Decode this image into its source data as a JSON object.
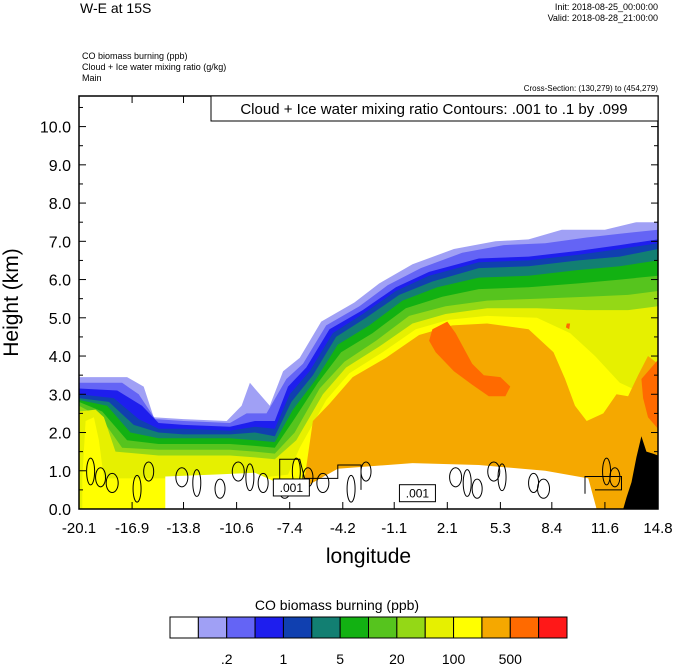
{
  "header": {
    "title": "W-E at 15S",
    "init": "Init: 2018-08-25_00:00:00",
    "valid": "Valid: 2018-08-28_21:00:00",
    "field1": "CO biomass burning   (ppb)",
    "field2": "Cloud + Ice water mixing ratio   (g/kg)",
    "field3": "Main",
    "cross_section": "Cross-Section: (130,279) to (454,279)"
  },
  "chart_data": {
    "type": "heatmap",
    "title": "W-E at 15S",
    "xlabel": "longitude",
    "ylabel": "Height (km)",
    "xlim": [
      -20.1,
      14.8
    ],
    "ylim": [
      0,
      10.8
    ],
    "x_ticks": [
      "-20.1",
      "-16.9",
      "-13.8",
      "-10.6",
      "-7.4",
      "-4.2",
      "-1.1",
      "2.1",
      "5.3",
      "8.4",
      "11.6",
      "14.8"
    ],
    "y_ticks": [
      "0.0",
      "1.0",
      "2.0",
      "3.0",
      "4.0",
      "5.0",
      "6.0",
      "7.0",
      "8.0",
      "9.0",
      "10.0"
    ],
    "contour_label": "Cloud + Ice water mixing ratio Contours: .001 to .1 by .099",
    "contour_value_labels": [
      ".001",
      ".001"
    ],
    "colorbar": {
      "title": "CO biomass burning  (ppb)",
      "colors": [
        "#ffffff",
        "#a0a0f5",
        "#6464f5",
        "#1e1eee",
        "#1040b0",
        "#127f72",
        "#12b112",
        "#56c41e",
        "#94d816",
        "#e6f000",
        "#ffff00",
        "#f5a800",
        "#ff6a00",
        "#ff1818"
      ],
      "labels": [
        ".2",
        "1",
        "5",
        "20",
        "100",
        "500"
      ]
    },
    "terrain_color": "#000000",
    "layers": [
      {
        "level": 1,
        "color": "#a0a0f5",
        "top": [
          [
            -20.1,
            3.45
          ],
          [
            -17.2,
            3.45
          ],
          [
            -16.2,
            3.2
          ],
          [
            -15.6,
            2.4
          ],
          [
            -13.8,
            2.35
          ],
          [
            -11.2,
            2.3
          ],
          [
            -10.3,
            2.7
          ],
          [
            -9.8,
            3.3
          ],
          [
            -9.2,
            3.0
          ],
          [
            -8.6,
            2.7
          ],
          [
            -7.8,
            3.6
          ],
          [
            -6.8,
            3.95
          ],
          [
            -5.5,
            4.9
          ],
          [
            -3.5,
            5.4
          ],
          [
            -2.0,
            5.9
          ],
          [
            0.0,
            6.4
          ],
          [
            2.5,
            6.8
          ],
          [
            5.0,
            7.0
          ],
          [
            7.0,
            7.05
          ],
          [
            9.0,
            7.3
          ],
          [
            11.6,
            7.3
          ],
          [
            13.5,
            7.5
          ],
          [
            14.8,
            7.5
          ]
        ]
      },
      {
        "level": 2,
        "color": "#6464f5",
        "top": [
          [
            -20.1,
            3.3
          ],
          [
            -17.5,
            3.3
          ],
          [
            -16.5,
            3.0
          ],
          [
            -15.5,
            2.35
          ],
          [
            -13.8,
            2.3
          ],
          [
            -11.0,
            2.25
          ],
          [
            -10.0,
            2.5
          ],
          [
            -8.8,
            2.5
          ],
          [
            -7.6,
            3.4
          ],
          [
            -6.6,
            3.8
          ],
          [
            -5.2,
            4.8
          ],
          [
            -3.2,
            5.3
          ],
          [
            -1.5,
            5.85
          ],
          [
            0.5,
            6.3
          ],
          [
            3.0,
            6.7
          ],
          [
            5.5,
            6.9
          ],
          [
            8.0,
            6.95
          ],
          [
            10.5,
            7.1
          ],
          [
            12.5,
            7.2
          ],
          [
            14.8,
            7.3
          ]
        ]
      },
      {
        "level": 3,
        "color": "#1e1eee",
        "top": [
          [
            -20.1,
            3.15
          ],
          [
            -17.8,
            3.1
          ],
          [
            -16.3,
            2.7
          ],
          [
            -15.3,
            2.25
          ],
          [
            -13.8,
            2.2
          ],
          [
            -11.0,
            2.15
          ],
          [
            -9.5,
            2.3
          ],
          [
            -8.3,
            2.3
          ],
          [
            -7.5,
            3.2
          ],
          [
            -6.4,
            3.7
          ],
          [
            -5.0,
            4.7
          ],
          [
            -3.0,
            5.2
          ],
          [
            -1.0,
            5.8
          ],
          [
            1.0,
            6.2
          ],
          [
            4.0,
            6.55
          ],
          [
            7.0,
            6.6
          ],
          [
            10.0,
            6.75
          ],
          [
            12.5,
            6.9
          ],
          [
            14.8,
            7.05
          ]
        ]
      },
      {
        "level": 4,
        "color": "#1040b0",
        "top": [
          [
            -20.1,
            3.0
          ],
          [
            -18.0,
            2.9
          ],
          [
            -16.5,
            2.35
          ],
          [
            -15.3,
            2.1
          ],
          [
            -13.8,
            2.1
          ],
          [
            -11.0,
            2.05
          ],
          [
            -9.5,
            2.15
          ],
          [
            -8.3,
            2.1
          ],
          [
            -7.4,
            3.0
          ],
          [
            -6.2,
            3.6
          ],
          [
            -4.8,
            4.6
          ],
          [
            -3.0,
            5.1
          ],
          [
            -1.0,
            5.7
          ],
          [
            1.0,
            6.1
          ],
          [
            4.0,
            6.45
          ],
          [
            7.0,
            6.5
          ],
          [
            10.0,
            6.65
          ],
          [
            12.5,
            6.8
          ],
          [
            14.8,
            6.95
          ]
        ]
      },
      {
        "level": 5,
        "color": "#127f72",
        "top": [
          [
            -20.1,
            2.9
          ],
          [
            -18.3,
            2.8
          ],
          [
            -16.8,
            2.2
          ],
          [
            -15.3,
            2.0
          ],
          [
            -13.8,
            1.95
          ],
          [
            -11.0,
            1.95
          ],
          [
            -9.5,
            2.0
          ],
          [
            -8.3,
            1.9
          ],
          [
            -7.3,
            2.8
          ],
          [
            -6.0,
            3.5
          ],
          [
            -4.6,
            4.5
          ],
          [
            -2.8,
            5.0
          ],
          [
            -0.8,
            5.6
          ],
          [
            1.2,
            5.95
          ],
          [
            4.0,
            6.3
          ],
          [
            7.0,
            6.35
          ],
          [
            10.0,
            6.5
          ],
          [
            12.5,
            6.6
          ],
          [
            14.8,
            6.8
          ]
        ]
      },
      {
        "level": 6,
        "color": "#12b112",
        "top": [
          [
            -20.1,
            2.85
          ],
          [
            -18.4,
            2.7
          ],
          [
            -17.0,
            2.0
          ],
          [
            -15.3,
            1.85
          ],
          [
            -13.8,
            1.85
          ],
          [
            -11.0,
            1.85
          ],
          [
            -9.5,
            1.8
          ],
          [
            -8.3,
            1.75
          ],
          [
            -7.2,
            2.6
          ],
          [
            -5.8,
            3.4
          ],
          [
            -4.5,
            4.3
          ],
          [
            -2.6,
            4.8
          ],
          [
            -0.6,
            5.45
          ],
          [
            1.5,
            5.8
          ],
          [
            4.0,
            6.05
          ],
          [
            7.0,
            6.1
          ],
          [
            10.0,
            6.25
          ],
          [
            12.5,
            6.35
          ],
          [
            14.8,
            6.5
          ]
        ]
      },
      {
        "level": 7,
        "color": "#56c41e",
        "top": [
          [
            -20.1,
            2.8
          ],
          [
            -18.7,
            2.55
          ],
          [
            -17.2,
            1.8
          ],
          [
            -15.3,
            1.7
          ],
          [
            -13.8,
            1.7
          ],
          [
            -11.0,
            1.7
          ],
          [
            -9.5,
            1.65
          ],
          [
            -8.3,
            1.6
          ],
          [
            -7.2,
            2.3
          ],
          [
            -5.7,
            3.3
          ],
          [
            -4.3,
            4.1
          ],
          [
            -2.4,
            4.6
          ],
          [
            -0.4,
            5.25
          ],
          [
            1.8,
            5.55
          ],
          [
            4.0,
            5.75
          ],
          [
            7.0,
            5.8
          ],
          [
            10.0,
            5.9
          ],
          [
            12.5,
            6.0
          ],
          [
            14.8,
            6.1
          ]
        ]
      },
      {
        "level": 8,
        "color": "#94d816",
        "top": [
          [
            -20.1,
            2.7
          ],
          [
            -18.8,
            2.4
          ],
          [
            -17.5,
            1.6
          ],
          [
            -15.3,
            1.55
          ],
          [
            -13.8,
            1.55
          ],
          [
            -11.0,
            1.55
          ],
          [
            -9.5,
            1.5
          ],
          [
            -8.3,
            1.45
          ],
          [
            -7.1,
            2.0
          ],
          [
            -5.6,
            3.15
          ],
          [
            -4.1,
            3.85
          ],
          [
            -2.2,
            4.4
          ],
          [
            -0.2,
            5.05
          ],
          [
            2.0,
            5.3
          ],
          [
            4.5,
            5.45
          ],
          [
            7.5,
            5.5
          ],
          [
            10.5,
            5.55
          ],
          [
            13.0,
            5.6
          ],
          [
            14.8,
            5.7
          ]
        ]
      },
      {
        "level": 9,
        "color": "#e6f000",
        "top": [
          [
            -20.1,
            2.55
          ],
          [
            -19.1,
            2.6
          ],
          [
            -18.6,
            2.4
          ],
          [
            -17.9,
            1.5
          ],
          [
            -15.3,
            1.4
          ],
          [
            -13.8,
            1.4
          ],
          [
            -11.0,
            1.4
          ],
          [
            -9.5,
            1.35
          ],
          [
            -8.3,
            1.3
          ],
          [
            -7.0,
            1.8
          ],
          [
            -5.4,
            3.0
          ],
          [
            -4.0,
            3.7
          ],
          [
            -2.0,
            4.25
          ],
          [
            0.0,
            4.85
          ],
          [
            2.0,
            5.1
          ],
          [
            4.5,
            5.25
          ],
          [
            7.5,
            5.25
          ],
          [
            10.5,
            5.2
          ],
          [
            13.0,
            5.2
          ],
          [
            14.8,
            5.3
          ]
        ]
      },
      {
        "level": 10,
        "color": "#ffff00",
        "top": [
          [
            -19.9,
            0.8
          ],
          [
            -19.7,
            2.3
          ],
          [
            -19.2,
            2.4
          ],
          [
            -18.9,
            1.8
          ],
          [
            -18.6,
            0.8
          ],
          [
            -15.3,
            0.8
          ],
          [
            -13.8,
            0.8
          ],
          [
            -9.5,
            0.8
          ],
          [
            -7.5,
            0.9
          ],
          [
            -6.8,
            1.6
          ],
          [
            -5.2,
            2.85
          ],
          [
            -3.8,
            3.55
          ],
          [
            -1.8,
            4.1
          ],
          [
            0.2,
            4.7
          ],
          [
            2.2,
            4.95
          ],
          [
            4.5,
            5.05
          ],
          [
            7.5,
            5.0
          ],
          [
            9.5,
            4.6
          ],
          [
            11.0,
            4.0
          ],
          [
            12.5,
            3.3
          ],
          [
            14.0,
            3.0
          ],
          [
            14.8,
            3.2
          ]
        ]
      },
      {
        "level": 11,
        "color": "#f5a800",
        "top": [
          [
            -6.5,
            0.8
          ],
          [
            -6.0,
            2.3
          ],
          [
            -5.0,
            2.75
          ],
          [
            -3.6,
            3.45
          ],
          [
            -1.6,
            3.95
          ],
          [
            0.4,
            4.55
          ],
          [
            2.4,
            4.8
          ],
          [
            4.5,
            4.85
          ],
          [
            7.0,
            4.7
          ],
          [
            8.5,
            4.1
          ],
          [
            9.2,
            3.4
          ],
          [
            9.8,
            2.7
          ],
          [
            10.5,
            2.3
          ],
          [
            11.5,
            2.5
          ],
          [
            12.3,
            3.0
          ],
          [
            13.0,
            2.95
          ],
          [
            13.6,
            3.5
          ],
          [
            14.2,
            4.0
          ],
          [
            14.8,
            3.8
          ]
        ]
      },
      {
        "level": 12,
        "color": "#ff6a00",
        "blob": [
          [
            1.2,
            4.7
          ],
          [
            2.1,
            4.9
          ],
          [
            2.6,
            4.6
          ],
          [
            3.6,
            3.8
          ],
          [
            4.3,
            3.5
          ],
          [
            5.3,
            3.45
          ],
          [
            5.9,
            3.2
          ],
          [
            5.6,
            2.95
          ],
          [
            4.6,
            2.95
          ],
          [
            3.6,
            3.25
          ],
          [
            2.5,
            3.6
          ],
          [
            1.4,
            4.1
          ],
          [
            1.0,
            4.4
          ]
        ]
      },
      {
        "level": 13,
        "color": "#ff6a00",
        "blob": [
          [
            13.8,
            3.4
          ],
          [
            14.8,
            3.9
          ],
          [
            14.8,
            2.1
          ],
          [
            14.2,
            2.4
          ],
          [
            13.9,
            2.9
          ]
        ]
      },
      {
        "level": 14,
        "color": "#ff6a00",
        "blob": [
          [
            9.3,
            4.85
          ],
          [
            9.5,
            4.85
          ],
          [
            9.45,
            4.7
          ],
          [
            9.25,
            4.75
          ]
        ]
      }
    ],
    "clear_bottom": [
      [
        -14.9,
        0.0
      ],
      [
        -14.9,
        0.85
      ],
      [
        -12.0,
        0.9
      ],
      [
        -9.5,
        0.95
      ],
      [
        -8.2,
        0.7
      ],
      [
        -6.8,
        0.5
      ],
      [
        -4.5,
        1.05
      ],
      [
        0.0,
        1.2
      ],
      [
        4.0,
        1.15
      ],
      [
        8.0,
        1.0
      ],
      [
        10.6,
        0.8
      ],
      [
        11.1,
        0.0
      ]
    ],
    "terrain": [
      [
        12.7,
        0.0
      ],
      [
        12.9,
        0.3
      ],
      [
        13.2,
        0.7
      ],
      [
        13.5,
        1.35
      ],
      [
        13.8,
        1.9
      ],
      [
        14.1,
        1.5
      ],
      [
        14.5,
        1.45
      ],
      [
        14.8,
        1.4
      ],
      [
        14.8,
        0.0
      ]
    ]
  }
}
